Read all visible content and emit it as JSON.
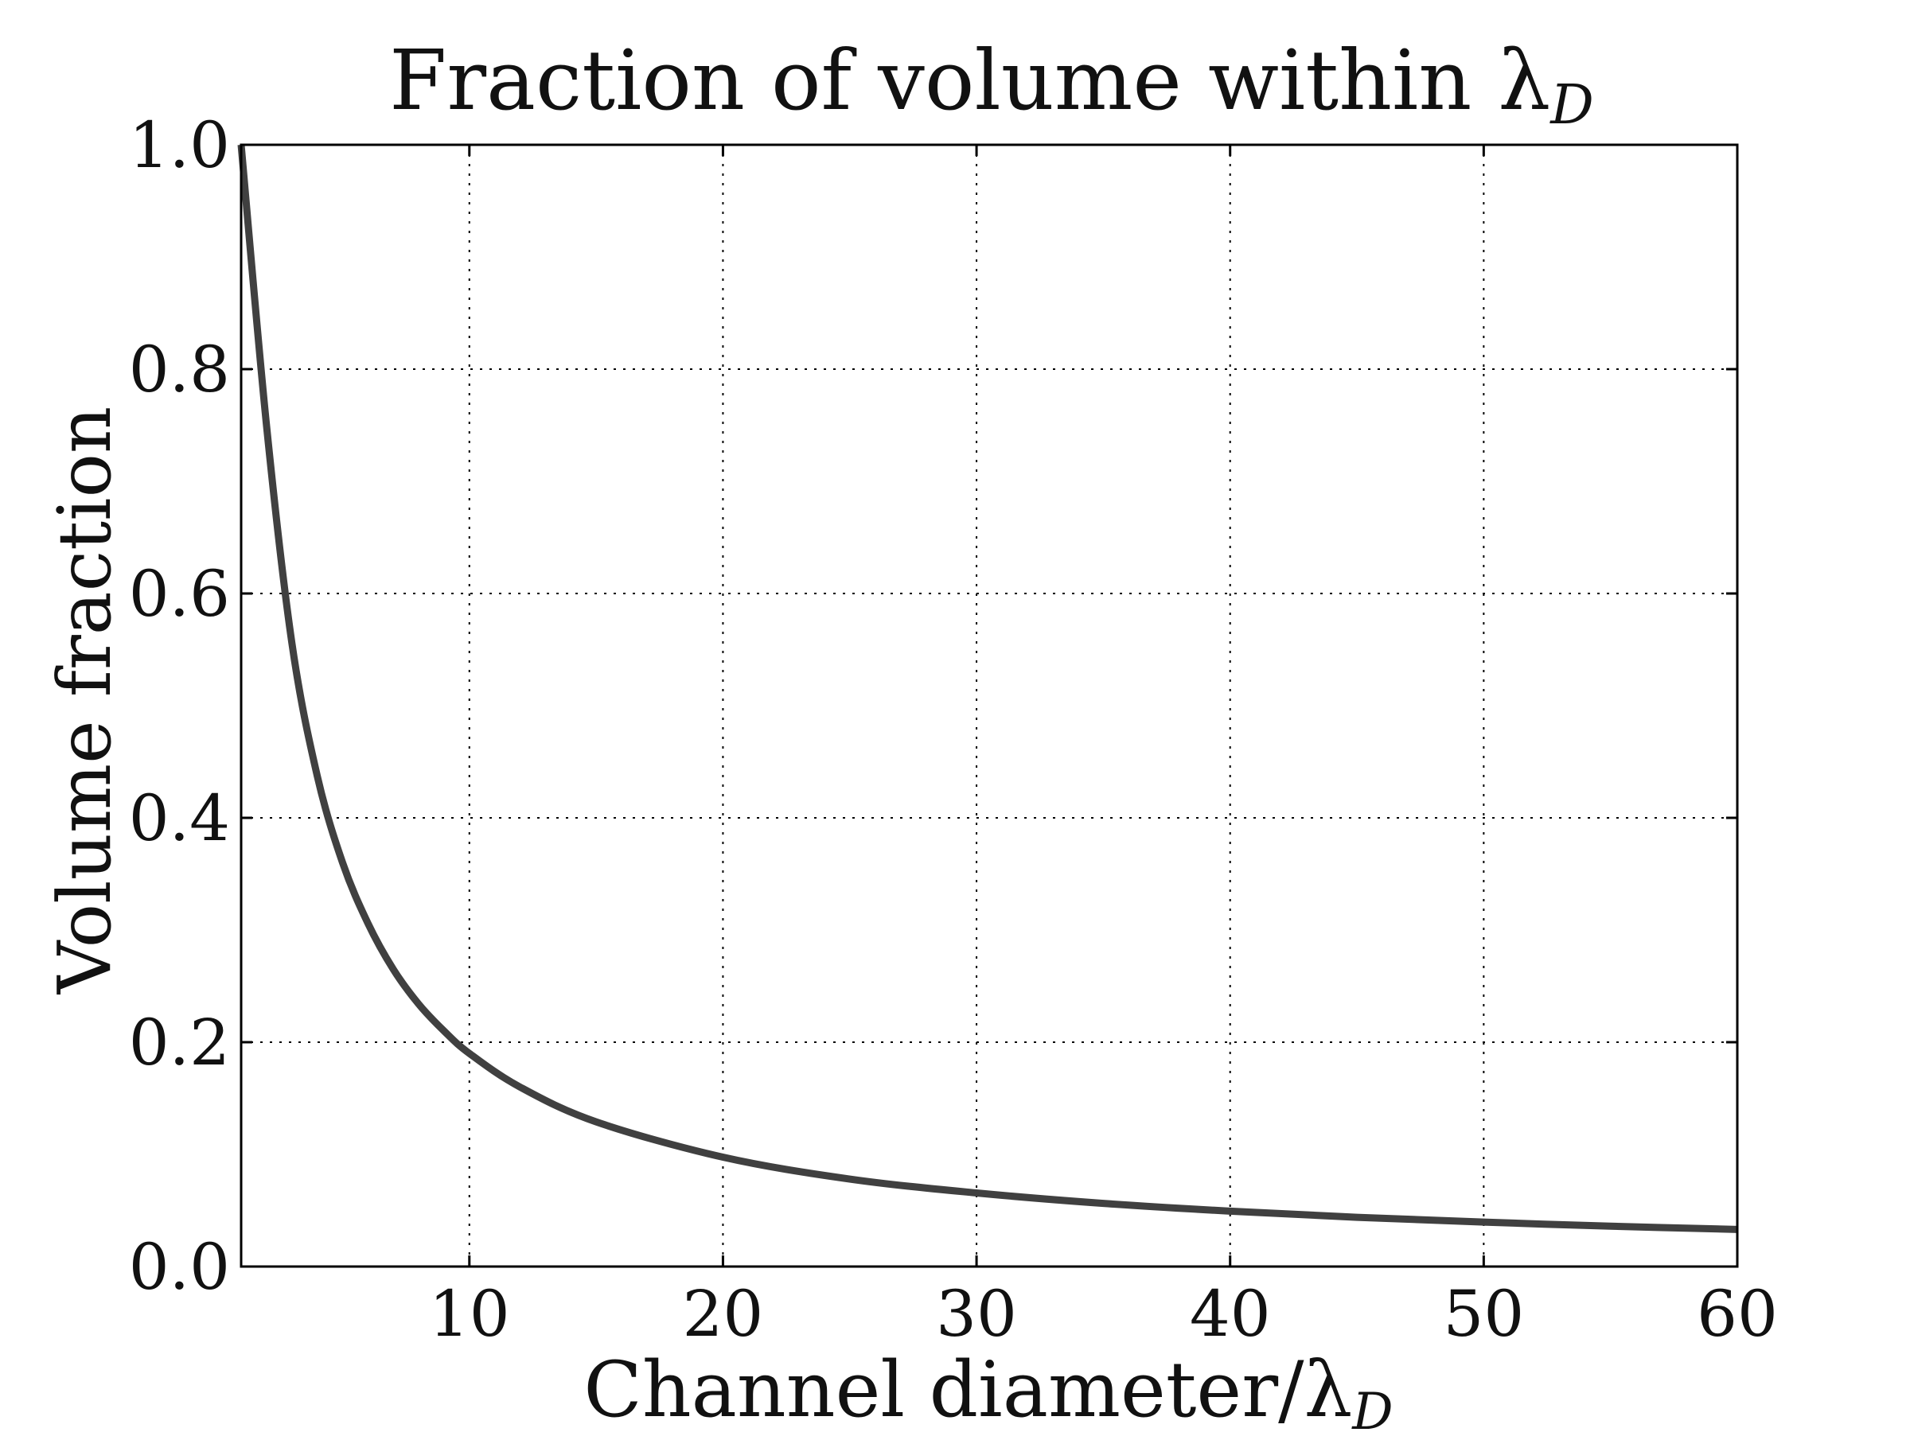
{
  "chart_data": {
    "type": "line",
    "title": "Fraction of volume within λ",
    "title_subscript": "D",
    "xlabel": "Channel diameter/λ",
    "xlabel_subscript": "D",
    "ylabel": "Volume fraction",
    "xlim": [
      1,
      60
    ],
    "ylim": [
      0.0,
      1.0
    ],
    "xticks": [
      10,
      20,
      30,
      40,
      50,
      60
    ],
    "xtick_labels": [
      "10",
      "20",
      "30",
      "40",
      "50",
      "60"
    ],
    "yticks": [
      0.0,
      0.2,
      0.4,
      0.6,
      0.8,
      1.0
    ],
    "ytick_labels": [
      "0.0",
      "0.2",
      "0.4",
      "0.6",
      "0.8",
      "1.0"
    ],
    "grid": true,
    "series": [
      {
        "color": "#404040",
        "x": [
          1,
          2,
          3,
          4,
          5,
          6,
          7,
          8,
          9,
          10,
          12,
          15,
          20,
          25,
          30,
          35,
          40,
          45,
          50,
          55,
          60
        ],
        "y": [
          1.0,
          0.75,
          0.556,
          0.4375,
          0.36,
          0.306,
          0.265,
          0.234,
          0.21,
          0.19,
          0.16,
          0.129,
          0.0975,
          0.078,
          0.0656,
          0.0563,
          0.0494,
          0.0439,
          0.0396,
          0.036,
          0.0331
        ]
      }
    ]
  }
}
